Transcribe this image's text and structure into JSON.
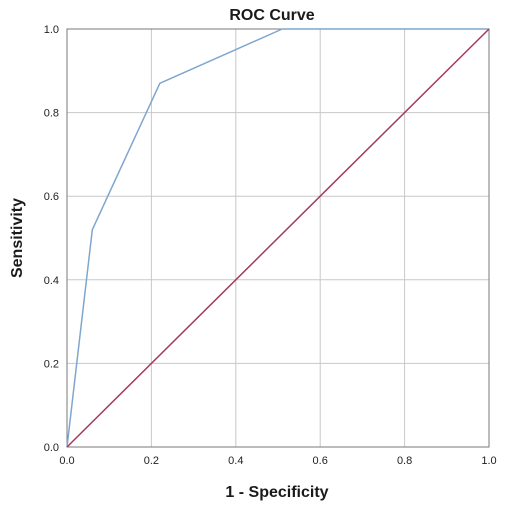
{
  "chart_data": {
    "type": "line",
    "title": "ROC Curve",
    "xlabel": "1 - Specificity",
    "ylabel": "Sensitivity",
    "xlim": [
      0.0,
      1.0
    ],
    "ylim": [
      0.0,
      1.0
    ],
    "x_ticks": [
      "0.0",
      "0.2",
      "0.4",
      "0.6",
      "0.8",
      "1.0"
    ],
    "y_ticks": [
      "0.0",
      "0.2",
      "0.4",
      "0.6",
      "0.8",
      "1.0"
    ],
    "grid": true,
    "legend": "none",
    "series": [
      {
        "color": "#7fa6cf",
        "x": [
          0.0,
          0.06,
          0.22,
          0.51,
          1.0
        ],
        "y": [
          0.0,
          0.52,
          0.87,
          1.0,
          1.0
        ]
      },
      {
        "color": "#a33b5a",
        "x": [
          0.0,
          1.0
        ],
        "y": [
          0.0,
          1.0
        ]
      }
    ]
  }
}
